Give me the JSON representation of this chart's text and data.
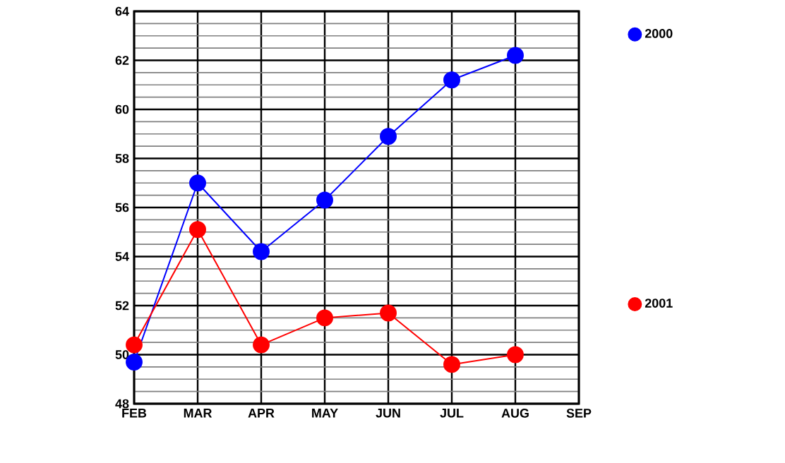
{
  "chart_data": {
    "type": "line",
    "categories": [
      "FEB",
      "MAR",
      "APR",
      "MAY",
      "JUN",
      "JUL",
      "AUG",
      "SEP"
    ],
    "series": [
      {
        "name": "2000",
        "color": "#0000ff",
        "values": [
          49.7,
          57.0,
          54.2,
          56.3,
          58.9,
          61.2,
          62.2,
          null
        ]
      },
      {
        "name": "2001",
        "color": "#ff0000",
        "values": [
          50.4,
          55.1,
          50.4,
          51.5,
          51.7,
          49.6,
          50.0,
          null
        ]
      }
    ],
    "ylim": [
      48,
      64
    ],
    "yticks": [
      48,
      50,
      52,
      54,
      56,
      58,
      60,
      62,
      64
    ],
    "grid": true,
    "legend": "right",
    "marker": "circle",
    "line_style": "solid"
  }
}
